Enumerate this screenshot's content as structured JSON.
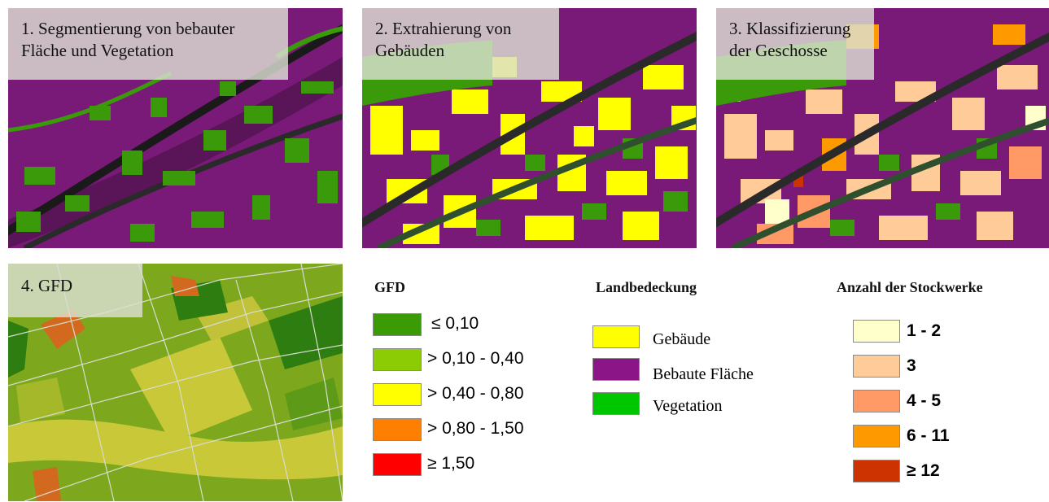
{
  "panels": [
    {
      "caption": "1. Segmentierung von bebauter\nFläche und Vegetation"
    },
    {
      "caption": "2. Extrahierung von\nGebäuden"
    },
    {
      "caption": "3. Klassifizierung\nder Geschosse"
    },
    {
      "caption": "4. GFD"
    }
  ],
  "legends": {
    "gfd": {
      "title": "GFD",
      "items": [
        {
          "label": "≤ 0,10",
          "color": "#3a9b06"
        },
        {
          "label": "> 0,10 - 0,40",
          "color": "#8ccc05"
        },
        {
          "label": "> 0,40 - 0,80",
          "color": "#ffff00"
        },
        {
          "label": "> 0,80 - 1,50",
          "color": "#ff8000"
        },
        {
          "label": "≥ 1,50",
          "color": "#ff0000"
        }
      ]
    },
    "landcover": {
      "title": "Landbedeckung",
      "items": [
        {
          "label": "Gebäude",
          "color": "#ffff00"
        },
        {
          "label": "Bebaute Fläche",
          "color": "#8b1486"
        },
        {
          "label": "Vegetation",
          "color": "#00c600"
        }
      ]
    },
    "floors": {
      "title": "Anzahl der Stockwerke",
      "items": [
        {
          "label": "1 - 2",
          "color": "#ffffcc"
        },
        {
          "label": "3",
          "color": "#ffcc99"
        },
        {
          "label": "4 - 5",
          "color": "#ff9966"
        },
        {
          "label": "6 - 11",
          "color": "#ff9900"
        },
        {
          "label": "≥ 12",
          "color": "#cc3300"
        }
      ]
    }
  }
}
